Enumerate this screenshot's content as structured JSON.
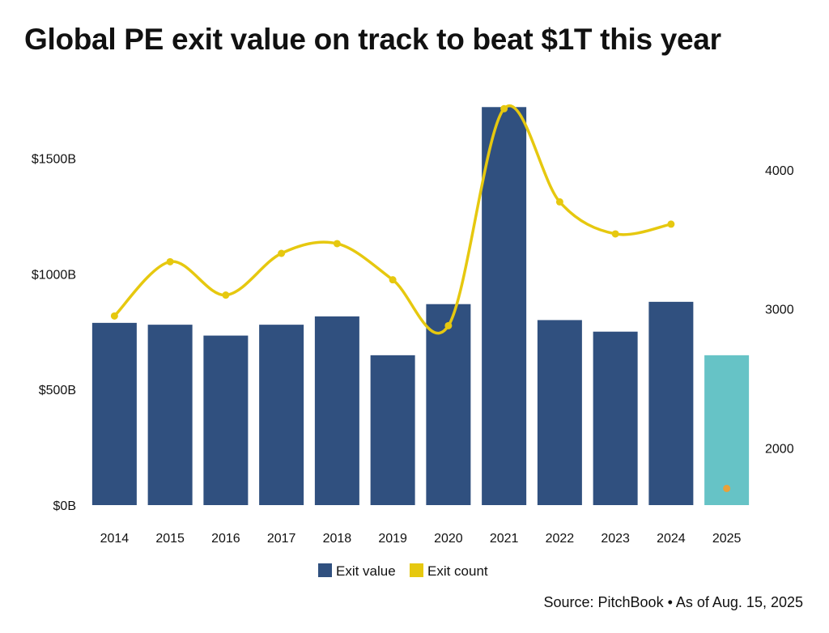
{
  "title": "Global PE exit value on track to beat $1T this year",
  "source": "Source: PitchBook • As of Aug. 15, 2025",
  "colors": {
    "bar": "#30507f",
    "bar_estimate": "#66c3c6",
    "line": "#e6c80f",
    "point_estimate": "#e8a13a"
  },
  "chart_data": {
    "type": "bar",
    "categories": [
      "2014",
      "2015",
      "2016",
      "2017",
      "2018",
      "2019",
      "2020",
      "2021",
      "2022",
      "2023",
      "2024",
      "2025"
    ],
    "series": [
      {
        "name": "Exit value",
        "type": "bar",
        "axis": "left",
        "values": [
          788,
          780,
          733,
          780,
          816,
          648,
          869,
          1721,
          800,
          750,
          879,
          648
        ]
      },
      {
        "name": "Exit count",
        "type": "line",
        "axis": "right",
        "values": [
          2950,
          3340,
          3100,
          3400,
          3470,
          3210,
          2880,
          4440,
          3770,
          3540,
          3610,
          1710
        ]
      }
    ],
    "y_left": {
      "ylim": [
        0,
        1750
      ],
      "ticks": [
        0,
        500,
        1000,
        1500
      ],
      "tick_labels": [
        "$0B",
        "$500B",
        "$1000B",
        "$1500B"
      ]
    },
    "y_right": {
      "ylim": [
        1590,
        4500
      ],
      "ticks": [
        2000,
        3000,
        4000
      ],
      "tick_labels": [
        "2000",
        "3000",
        "4000"
      ]
    },
    "legend": {
      "position": "bottom",
      "entries": [
        "Exit value",
        "Exit count"
      ]
    },
    "grid": false
  }
}
